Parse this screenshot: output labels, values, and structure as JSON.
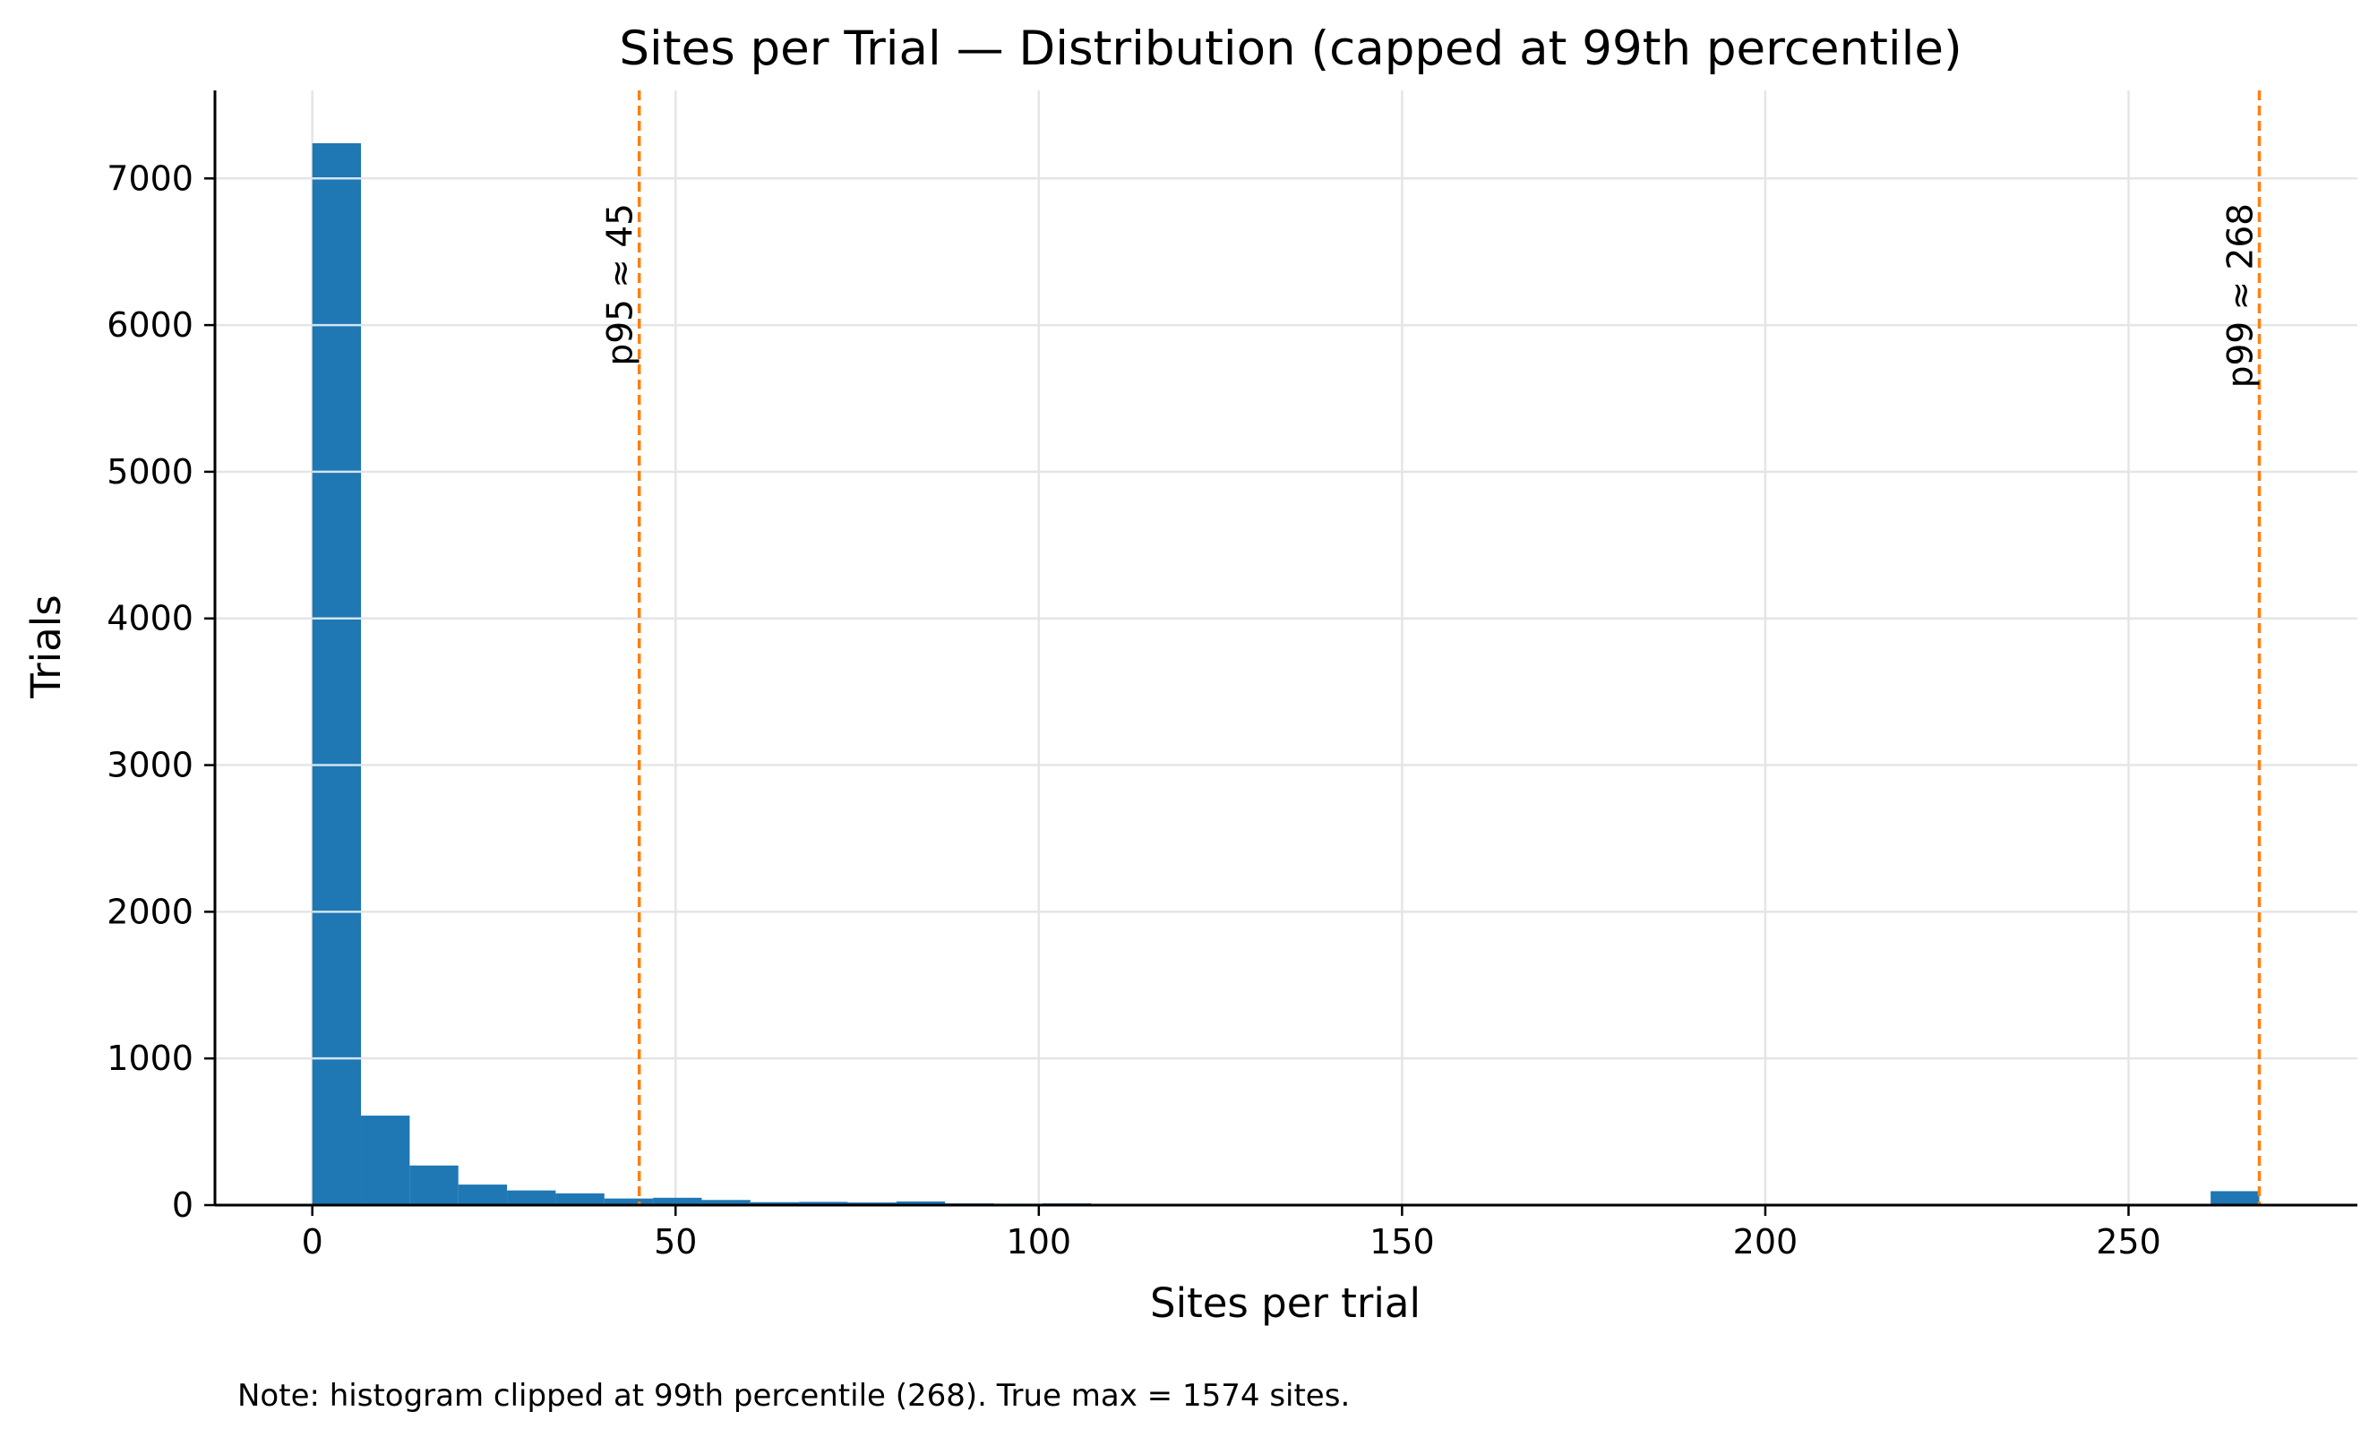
{
  "chart_data": {
    "type": "bar",
    "title": "Sites per Trial — Distribution (capped at 99th percentile)",
    "xlabel": "Sites per trial",
    "ylabel": "Trials",
    "xlim": [
      -13.4,
      281.5
    ],
    "ylim": [
      0,
      7600
    ],
    "x_ticks": [
      0,
      50,
      100,
      150,
      200,
      250
    ],
    "y_ticks": [
      0,
      1000,
      2000,
      3000,
      4000,
      5000,
      6000,
      7000
    ],
    "grid": true,
    "bin_width": 6.7,
    "bins": [
      {
        "x0": 0.0,
        "x1": 6.7,
        "value": 7240
      },
      {
        "x0": 6.7,
        "x1": 13.4,
        "value": 610
      },
      {
        "x0": 13.4,
        "x1": 20.1,
        "value": 270
      },
      {
        "x0": 20.1,
        "x1": 26.8,
        "value": 140
      },
      {
        "x0": 26.8,
        "x1": 33.5,
        "value": 100
      },
      {
        "x0": 33.5,
        "x1": 40.2,
        "value": 80
      },
      {
        "x0": 40.2,
        "x1": 46.9,
        "value": 45
      },
      {
        "x0": 46.9,
        "x1": 53.6,
        "value": 50
      },
      {
        "x0": 53.6,
        "x1": 60.3,
        "value": 35
      },
      {
        "x0": 60.3,
        "x1": 67.0,
        "value": 20
      },
      {
        "x0": 67.0,
        "x1": 73.7,
        "value": 22
      },
      {
        "x0": 73.7,
        "x1": 80.4,
        "value": 18
      },
      {
        "x0": 80.4,
        "x1": 87.1,
        "value": 25
      },
      {
        "x0": 87.1,
        "x1": 93.8,
        "value": 12
      },
      {
        "x0": 93.8,
        "x1": 100.5,
        "value": 10
      },
      {
        "x0": 100.5,
        "x1": 107.2,
        "value": 12
      },
      {
        "x0": 107.2,
        "x1": 113.9,
        "value": 6
      },
      {
        "x0": 113.9,
        "x1": 120.6,
        "value": 5
      },
      {
        "x0": 120.6,
        "x1": 127.3,
        "value": 4
      },
      {
        "x0": 127.3,
        "x1": 134.0,
        "value": 4
      },
      {
        "x0": 134.0,
        "x1": 140.7,
        "value": 3
      },
      {
        "x0": 140.7,
        "x1": 147.4,
        "value": 3
      },
      {
        "x0": 147.4,
        "x1": 154.1,
        "value": 3
      },
      {
        "x0": 154.1,
        "x1": 160.8,
        "value": 2
      },
      {
        "x0": 160.8,
        "x1": 167.5,
        "value": 2
      },
      {
        "x0": 167.5,
        "x1": 174.2,
        "value": 2
      },
      {
        "x0": 174.2,
        "x1": 180.9,
        "value": 2
      },
      {
        "x0": 180.9,
        "x1": 187.6,
        "value": 2
      },
      {
        "x0": 187.6,
        "x1": 194.3,
        "value": 2
      },
      {
        "x0": 194.3,
        "x1": 201.0,
        "value": 2
      },
      {
        "x0": 201.0,
        "x1": 207.7,
        "value": 2
      },
      {
        "x0": 207.7,
        "x1": 214.4,
        "value": 2
      },
      {
        "x0": 214.4,
        "x1": 221.1,
        "value": 2
      },
      {
        "x0": 221.1,
        "x1": 227.8,
        "value": 1
      },
      {
        "x0": 227.8,
        "x1": 234.5,
        "value": 1
      },
      {
        "x0": 234.5,
        "x1": 241.2,
        "value": 1
      },
      {
        "x0": 241.2,
        "x1": 247.9,
        "value": 1
      },
      {
        "x0": 247.9,
        "x1": 254.6,
        "value": 1
      },
      {
        "x0": 254.6,
        "x1": 261.3,
        "value": 1
      },
      {
        "x0": 261.3,
        "x1": 268.0,
        "value": 95
      }
    ],
    "reference_lines": [
      {
        "x": 45,
        "label": "p95 ≈ 45"
      },
      {
        "x": 268,
        "label": "p99 ≈ 268"
      }
    ],
    "note": "Note: histogram clipped at 99th percentile (268). True max = 1574 sites."
  },
  "colors": {
    "bar": "#1f77b4",
    "reference_line": "#ff7f0e",
    "grid": "#e5e5e5",
    "axis": "#000000"
  }
}
